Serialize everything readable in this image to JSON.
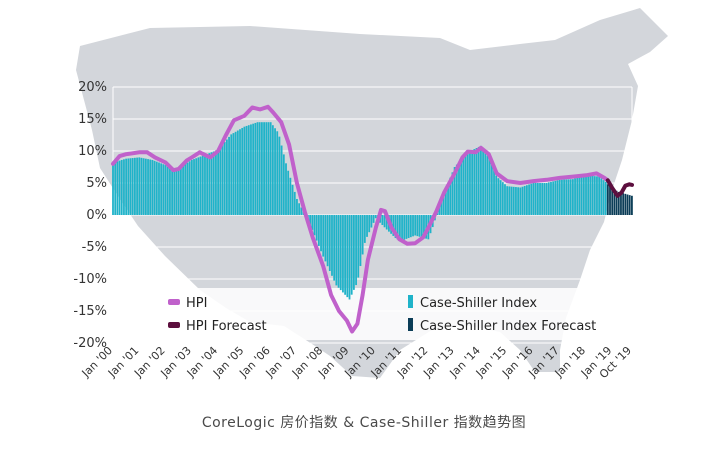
{
  "chart_data": {
    "type": "bar",
    "title": "",
    "xlabel": "",
    "ylabel": "",
    "ylim": [
      -20,
      20
    ],
    "grid": true,
    "y_ticks": [
      "20%",
      "15%",
      "10%",
      "5%",
      "0%",
      "-5%",
      "-10%",
      "-15%",
      "-20%"
    ],
    "y_tick_values": [
      20,
      15,
      10,
      5,
      0,
      -5,
      -10,
      -15,
      -20
    ],
    "x_ticks": [
      "Jan '00",
      "Jan '01",
      "Jan '02",
      "Jan '03",
      "Jan '04",
      "Jan '05",
      "Jan '06",
      "Jan '07",
      "Jan '08",
      "Jan '09",
      "Jan '10",
      "Jan '11",
      "Jan '12",
      "Jan '13",
      "Jan '14",
      "Jan '15",
      "Jan '16",
      "Jan '17",
      "Jan '18",
      "Jan '19",
      "Oct '19"
    ],
    "x_tick_values": [
      2000,
      2001,
      2002,
      2003,
      2004,
      2005,
      2006,
      2007,
      2008,
      2009,
      2010,
      2011,
      2012,
      2013,
      2014,
      2015,
      2016,
      2017,
      2018,
      2019,
      2019.75
    ],
    "x_range": [
      2000,
      2019.75
    ],
    "series": [
      {
        "name": "Case-Shiller Index",
        "kind": "bar",
        "color": "#1fb3c9",
        "points": [
          [
            2000,
            8.2
          ],
          [
            2000.5,
            8.8
          ],
          [
            2001,
            9.0
          ],
          [
            2001.5,
            8.6
          ],
          [
            2002,
            7.8
          ],
          [
            2002.3,
            6.8
          ],
          [
            2002.6,
            7.6
          ],
          [
            2003,
            8.6
          ],
          [
            2003.5,
            9.4
          ],
          [
            2004,
            10.2
          ],
          [
            2004.5,
            12.6
          ],
          [
            2005,
            13.8
          ],
          [
            2005.5,
            14.5
          ],
          [
            2006,
            14.5
          ],
          [
            2006.3,
            12.8
          ],
          [
            2006.6,
            7.8
          ],
          [
            2007,
            2.5
          ],
          [
            2007.5,
            -1.5
          ],
          [
            2008,
            -6.5
          ],
          [
            2008.5,
            -11.0
          ],
          [
            2009,
            -13.2
          ],
          [
            2009.3,
            -10.5
          ],
          [
            2009.6,
            -4.0
          ],
          [
            2010,
            -0.5
          ],
          [
            2010.4,
            -2.2
          ],
          [
            2010.8,
            -3.8
          ],
          [
            2011,
            -4.0
          ],
          [
            2011.5,
            -3.2
          ],
          [
            2012,
            -3.8
          ],
          [
            2012.2,
            -1.5
          ],
          [
            2012.5,
            2.5
          ],
          [
            2013,
            7.5
          ],
          [
            2013.5,
            9.8
          ],
          [
            2014,
            10.8
          ],
          [
            2014.3,
            9.0
          ],
          [
            2014.6,
            6.0
          ],
          [
            2015,
            4.5
          ],
          [
            2015.5,
            4.3
          ],
          [
            2016,
            5.0
          ],
          [
            2016.5,
            5.0
          ],
          [
            2017,
            5.5
          ],
          [
            2017.5,
            5.6
          ],
          [
            2018,
            6.2
          ],
          [
            2018.5,
            6.0
          ],
          [
            2018.8,
            5.0
          ]
        ]
      },
      {
        "name": "Case-Shiller Index Forecast",
        "kind": "bar",
        "color": "#0b3d57",
        "points": [
          [
            2018.83,
            4.8
          ],
          [
            2019,
            4.1
          ],
          [
            2019.25,
            3.6
          ],
          [
            2019.5,
            3.3
          ],
          [
            2019.75,
            3.0
          ]
        ]
      },
      {
        "name": "HPI",
        "kind": "line",
        "color": "#c061cb",
        "points": [
          [
            2000,
            8.0
          ],
          [
            2000.25,
            9.2
          ],
          [
            2000.5,
            9.5
          ],
          [
            2001,
            9.8
          ],
          [
            2001.3,
            9.8
          ],
          [
            2001.6,
            9.0
          ],
          [
            2002,
            8.2
          ],
          [
            2002.3,
            7.0
          ],
          [
            2002.5,
            7.2
          ],
          [
            2002.8,
            8.5
          ],
          [
            2003,
            9.0
          ],
          [
            2003.3,
            9.8
          ],
          [
            2003.7,
            9.0
          ],
          [
            2004,
            10.0
          ],
          [
            2004.3,
            12.5
          ],
          [
            2004.6,
            14.8
          ],
          [
            2005,
            15.5
          ],
          [
            2005.3,
            16.8
          ],
          [
            2005.6,
            16.5
          ],
          [
            2005.9,
            16.9
          ],
          [
            2006.1,
            16.0
          ],
          [
            2006.4,
            14.5
          ],
          [
            2006.7,
            11.0
          ],
          [
            2007,
            5.0
          ],
          [
            2007.3,
            0.5
          ],
          [
            2007.6,
            -3.5
          ],
          [
            2008,
            -8.0
          ],
          [
            2008.3,
            -12.5
          ],
          [
            2008.6,
            -15.0
          ],
          [
            2008.9,
            -16.5
          ],
          [
            2009.1,
            -18.2
          ],
          [
            2009.3,
            -17.0
          ],
          [
            2009.5,
            -12.5
          ],
          [
            2009.7,
            -7.0
          ],
          [
            2010,
            -2.0
          ],
          [
            2010.2,
            0.8
          ],
          [
            2010.35,
            0.6
          ],
          [
            2010.6,
            -2.0
          ],
          [
            2010.9,
            -3.8
          ],
          [
            2011.2,
            -4.5
          ],
          [
            2011.5,
            -4.4
          ],
          [
            2011.8,
            -3.5
          ],
          [
            2012,
            -2.0
          ],
          [
            2012.3,
            0.5
          ],
          [
            2012.6,
            3.5
          ],
          [
            2013,
            6.5
          ],
          [
            2013.3,
            9.0
          ],
          [
            2013.5,
            9.9
          ],
          [
            2013.8,
            9.8
          ],
          [
            2014,
            10.5
          ],
          [
            2014.3,
            9.5
          ],
          [
            2014.6,
            6.5
          ],
          [
            2015,
            5.3
          ],
          [
            2015.5,
            5.0
          ],
          [
            2016,
            5.3
          ],
          [
            2016.5,
            5.5
          ],
          [
            2017,
            5.8
          ],
          [
            2017.5,
            6.0
          ],
          [
            2018,
            6.2
          ],
          [
            2018.4,
            6.5
          ],
          [
            2018.7,
            5.8
          ],
          [
            2018.83,
            5.4
          ]
        ]
      },
      {
        "name": "HPI Forecast",
        "kind": "line",
        "color": "#5c0f3e",
        "points": [
          [
            2018.83,
            5.4
          ],
          [
            2019,
            4.2
          ],
          [
            2019.2,
            3.0
          ],
          [
            2019.35,
            3.5
          ],
          [
            2019.5,
            4.6
          ],
          [
            2019.65,
            4.8
          ],
          [
            2019.75,
            4.7
          ]
        ]
      }
    ],
    "legend": [
      {
        "label": "HPI",
        "color": "#c061cb",
        "placement": "bottom-left"
      },
      {
        "label": "HPI Forecast",
        "color": "#5c0f3e",
        "placement": "bottom-left"
      },
      {
        "label": "Case-Shiller Index",
        "color": "#1fb3c9",
        "placement": "bottom-right"
      },
      {
        "label": "Case-Shiller Index Forecast",
        "color": "#0b3d57",
        "placement": "bottom-right"
      }
    ],
    "background": {
      "shape": "usa-map-silhouette",
      "color": "#d3d6db"
    }
  },
  "caption": "CoreLogic 房价指数 & Case-Shiller 指数趋势图"
}
